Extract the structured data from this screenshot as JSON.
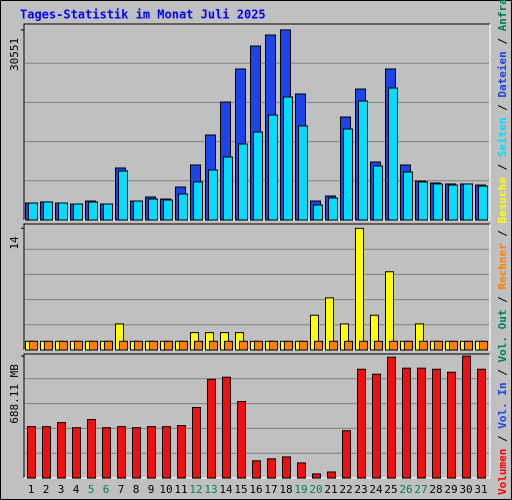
{
  "title": "Tages-Statistik im Monat Juli 2025",
  "legend_separator": " / ",
  "legend": [
    {
      "name": "Volumen",
      "color": "#ff0000"
    },
    {
      "name": "Vol. In",
      "color": "#1c44e6"
    },
    {
      "name": "Vol. Out",
      "color": "#00805c"
    },
    {
      "name": "Rechner",
      "color": "#ff8000"
    },
    {
      "name": "Besuche",
      "color": "#ffff00"
    },
    {
      "name": "Seiten",
      "color": "#00dcff"
    },
    {
      "name": "Dateien",
      "color": "#1c44e6"
    },
    {
      "name": "Anfragen",
      "color": "#00805c"
    }
  ],
  "chart_data": [
    {
      "type": "bar",
      "ylim": [
        0,
        31500
      ],
      "yticks": [
        30551
      ],
      "grid": true,
      "series": [
        {
          "color": "#1c44e6",
          "values": [
            2730,
            2900,
            2730,
            2570,
            3050,
            2570,
            8360,
            3050,
            3700,
            3370,
            5300,
            8840,
            13660,
            18960,
            24270,
            27960,
            29730,
            30551,
            20250,
            3050,
            3860,
            16550,
            21050,
            9320,
            24270,
            8840,
            6270,
            5950,
            5790,
            5790,
            5620
          ]
        },
        {
          "color": "#00dcff",
          "values": [
            2730,
            2900,
            2730,
            2570,
            2890,
            2570,
            7870,
            3050,
            3370,
            3210,
            4180,
            6110,
            8040,
            10120,
            12210,
            14140,
            16870,
            19770,
            15110,
            2410,
            3540,
            14620,
            19120,
            8680,
            21210,
            7710,
            6110,
            5790,
            5620,
            5790,
            5460
          ]
        }
      ]
    },
    {
      "type": "bar",
      "ylim": [
        0,
        14.5
      ],
      "yticks": [
        14
      ],
      "grid": true,
      "series": [
        {
          "color": "#ffff00",
          "values": [
            1,
            1,
            1,
            1,
            1,
            1,
            3,
            1,
            1,
            1,
            1,
            2,
            2,
            2,
            2,
            1,
            1,
            1,
            1,
            4,
            6,
            3,
            14,
            4,
            9,
            1,
            3,
            1,
            1,
            1,
            1
          ]
        },
        {
          "color": "#ff8000",
          "values": [
            1,
            1,
            1,
            1,
            1,
            1,
            1,
            1,
            1,
            1,
            1,
            1,
            1,
            1,
            1,
            1,
            1,
            1,
            1,
            1,
            1,
            1,
            1,
            1,
            1,
            1,
            1,
            1,
            1,
            1,
            1
          ]
        }
      ]
    },
    {
      "type": "bar",
      "ylim": [
        0,
        700
      ],
      "yticks": [
        {
          "value": 688.11,
          "label": "688.11 MB"
        }
      ],
      "grid": true,
      "categories": [
        "1",
        "2",
        "3",
        "4",
        "5",
        "6",
        "7",
        "8",
        "9",
        "10",
        "11",
        "12",
        "13",
        "14",
        "15",
        "16",
        "17",
        "18",
        "19",
        "20",
        "21",
        "22",
        "23",
        "24",
        "25",
        "26",
        "27",
        "28",
        "29",
        "30",
        "31"
      ],
      "category_colors": [
        "#000000",
        "#000000",
        "#000000",
        "#000000",
        "#00805c",
        "#00805c",
        "#000000",
        "#000000",
        "#000000",
        "#000000",
        "#000000",
        "#00805c",
        "#00805c",
        "#000000",
        "#000000",
        "#000000",
        "#000000",
        "#000000",
        "#00805c",
        "#00805c",
        "#000000",
        "#000000",
        "#000000",
        "#000000",
        "#000000",
        "#00805c",
        "#00805c",
        "#000000",
        "#000000",
        "#000000",
        "#000000"
      ],
      "series": [
        {
          "color": "#ee1111",
          "values": [
            290,
            290,
            313,
            284,
            330,
            284,
            290,
            284,
            290,
            290,
            296,
            398,
            557,
            569,
            432,
            97,
            108,
            119,
            85,
            23,
            34,
            267,
            614,
            586,
            682,
            620,
            620,
            614,
            597,
            688.11,
            614
          ]
        }
      ]
    }
  ]
}
